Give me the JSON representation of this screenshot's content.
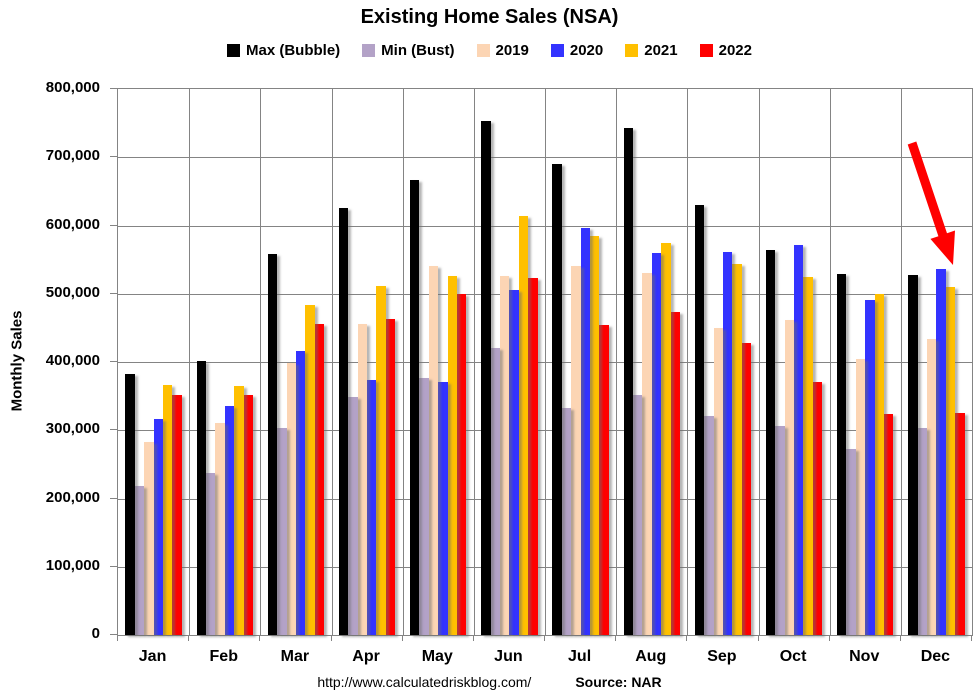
{
  "title": "Existing Home Sales (NSA)",
  "footer": {
    "url": "http://www.calculatedriskblog.com/",
    "source": "Source: NAR"
  },
  "chart_data": {
    "type": "bar",
    "title": "Existing Home Sales (NSA)",
    "xlabel": "",
    "ylabel": "Monthly Sales",
    "ylim": [
      0,
      800000
    ],
    "ytick_step": 100000,
    "grid": true,
    "legend_position": "top",
    "categories": [
      "Jan",
      "Feb",
      "Mar",
      "Apr",
      "May",
      "Jun",
      "Jul",
      "Aug",
      "Sep",
      "Oct",
      "Nov",
      "Dec"
    ],
    "series": [
      {
        "name": "Max (Bubble)",
        "color": "#000000",
        "values": [
          382000,
          401000,
          558000,
          625000,
          667000,
          753000,
          690000,
          743000,
          630000,
          564000,
          529000,
          527000
        ]
      },
      {
        "name": "Min (Bust)",
        "color": "#B3A2C7",
        "values": [
          218000,
          238000,
          303000,
          349000,
          377000,
          420000,
          332000,
          352000,
          321000,
          306000,
          272000,
          304000
        ]
      },
      {
        "name": "2019",
        "color": "#FCD5B4",
        "values": [
          283000,
          310000,
          398000,
          455000,
          541000,
          526000,
          540000,
          531000,
          450000,
          461000,
          405000,
          433000
        ]
      },
      {
        "name": "2020",
        "color": "#3333FF",
        "values": [
          317000,
          335000,
          416000,
          373000,
          371000,
          505000,
          596000,
          560000,
          561000,
          571000,
          491000,
          536000
        ]
      },
      {
        "name": "2021",
        "color": "#FFC000",
        "values": [
          366000,
          365000,
          483000,
          511000,
          526000,
          614000,
          584000,
          574000,
          543000,
          525000,
          499000,
          510000
        ]
      },
      {
        "name": "2022",
        "color": "#FF0000",
        "values": [
          352000,
          352000,
          456000,
          463000,
          500000,
          523000,
          454000,
          474000,
          428000,
          371000,
          324000,
          326000
        ]
      }
    ],
    "annotation": {
      "type": "arrow",
      "color": "#FF0000",
      "target": "Dec 2022 decline"
    },
    "colors": {
      "gridline": "#848484"
    }
  }
}
